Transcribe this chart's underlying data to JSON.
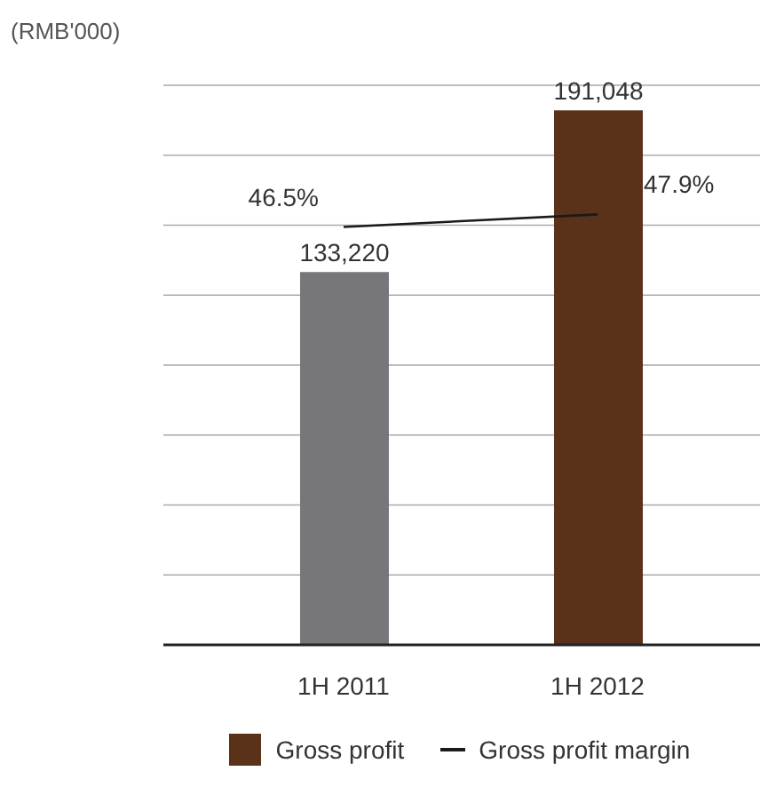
{
  "chart_data": {
    "type": "bar",
    "ylabel": "(RMB'000)",
    "categories": [
      "1H 2011",
      "1H 2012"
    ],
    "series": [
      {
        "name": "Gross profit",
        "colors": [
          "#77777b",
          "#5a3119"
        ],
        "color": "#5a3119",
        "values": [
          133220,
          191048
        ],
        "value_labels": [
          "133,220",
          "191,048"
        ]
      },
      {
        "name": "Gross profit margin",
        "type": "line",
        "axis": "y2",
        "color": "#1a1a1a",
        "values": [
          46.5,
          47.9
        ],
        "value_labels": [
          "46.5%",
          "47.9%"
        ]
      }
    ],
    "grid": "y",
    "legend": "bottom",
    "marker": "none",
    "line_style": "solid",
    "tick_labels": "x"
  }
}
